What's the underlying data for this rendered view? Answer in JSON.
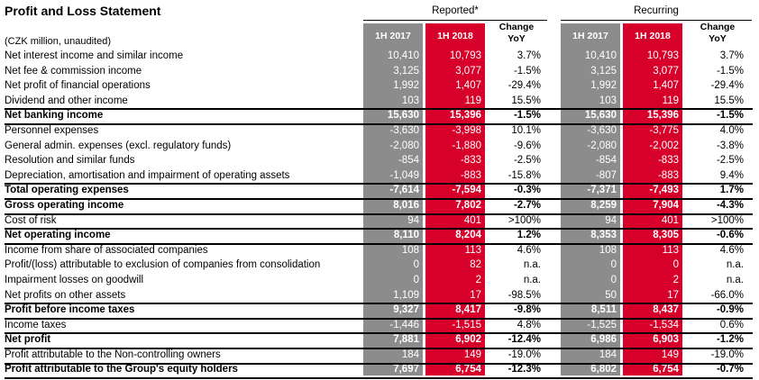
{
  "title": "Profit and Loss Statement",
  "subtitle": "(CZK million, unaudited)",
  "groups": {
    "reported": "Reported*",
    "recurring": "Recurring"
  },
  "headers": {
    "h2017": "1H 2017",
    "h2018": "1H 2018",
    "change": "Change",
    "yoy": "YoY"
  },
  "colors": {
    "grey": "#8c8c8c",
    "red": "#d6002a"
  },
  "rows": [
    {
      "label": "Net interest income and similar income",
      "bold": false,
      "rep2017": "10,410",
      "rep2018": "10,793",
      "repChg": "3.7%",
      "rec2017": "10,410",
      "rec2018": "10,793",
      "recChg": "3.7%"
    },
    {
      "label": "Net fee & commission income",
      "bold": false,
      "rep2017": "3,125",
      "rep2018": "3,077",
      "repChg": "-1.5%",
      "rec2017": "3,125",
      "rec2018": "3,077",
      "recChg": "-1.5%"
    },
    {
      "label": "Net profit of financial operations",
      "bold": false,
      "rep2017": "1,992",
      "rep2018": "1,407",
      "repChg": "-29.4%",
      "rec2017": "1,992",
      "rec2018": "1,407",
      "recChg": "-29.4%"
    },
    {
      "label": "Dividend and other income",
      "bold": false,
      "rep2017": "103",
      "rep2018": "119",
      "repChg": "15.5%",
      "rec2017": "103",
      "rec2018": "119",
      "recChg": "15.5%"
    },
    {
      "label": "Net banking income",
      "bold": true,
      "rep2017": "15,630",
      "rep2018": "15,396",
      "repChg": "-1.5%",
      "rec2017": "15,630",
      "rec2018": "15,396",
      "recChg": "-1.5%"
    },
    {
      "label": "Personnel expenses",
      "bold": false,
      "rep2017": "-3,630",
      "rep2018": "-3,998",
      "repChg": "10.1%",
      "rec2017": "-3,630",
      "rec2018": "-3,775",
      "recChg": "4.0%"
    },
    {
      "label": "General admin. expenses (excl. regulatory funds)",
      "bold": false,
      "rep2017": "-2,080",
      "rep2018": "-1,880",
      "repChg": "-9.6%",
      "rec2017": "-2,080",
      "rec2018": "-2,002",
      "recChg": "-3.8%"
    },
    {
      "label": "Resolution and similar funds",
      "bold": false,
      "rep2017": "-854",
      "rep2018": "-833",
      "repChg": "-2.5%",
      "rec2017": "-854",
      "rec2018": "-833",
      "recChg": "-2.5%"
    },
    {
      "label": "Depreciation, amortisation and impairment of operating assets",
      "bold": false,
      "rep2017": "-1,049",
      "rep2018": "-883",
      "repChg": "-15.8%",
      "rec2017": "-807",
      "rec2018": "-883",
      "recChg": "9.4%"
    },
    {
      "label": "Total operating expenses",
      "bold": true,
      "rep2017": "-7,614",
      "rep2018": "-7,594",
      "repChg": "-0.3%",
      "rec2017": "-7,371",
      "rec2018": "-7,493",
      "recChg": "1.7%"
    },
    {
      "label": "Gross operating income",
      "bold": true,
      "rep2017": "8,016",
      "rep2018": "7,802",
      "repChg": "-2.7%",
      "rec2017": "8,259",
      "rec2018": "7,904",
      "recChg": "-4.3%"
    },
    {
      "label": "Cost of risk",
      "bold": false,
      "rep2017": "94",
      "rep2018": "401",
      "repChg": ">100%",
      "rec2017": "94",
      "rec2018": "401",
      "recChg": ">100%"
    },
    {
      "label": "Net operating income",
      "bold": true,
      "rep2017": "8,110",
      "rep2018": "8,204",
      "repChg": "1.2%",
      "rec2017": "8,353",
      "rec2018": "8,305",
      "recChg": "-0.6%"
    },
    {
      "label": "Income from share of associated companies",
      "bold": false,
      "rep2017": "108",
      "rep2018": "113",
      "repChg": "4.6%",
      "rec2017": "108",
      "rec2018": "113",
      "recChg": "4.6%"
    },
    {
      "label": "Profit/(loss) attributable to exclusion of companies from consolidation",
      "bold": false,
      "rep2017": "0",
      "rep2018": "82",
      "repChg": "n.a.",
      "rec2017": "0",
      "rec2018": "0",
      "recChg": "n.a."
    },
    {
      "label": "Impairment losses on goodwill",
      "bold": false,
      "rep2017": "0",
      "rep2018": "2",
      "repChg": "n.a.",
      "rec2017": "0",
      "rec2018": "2",
      "recChg": "n.a."
    },
    {
      "label": "Net profits on other assets",
      "bold": false,
      "rep2017": "1,109",
      "rep2018": "17",
      "repChg": "-98.5%",
      "rec2017": "50",
      "rec2018": "17",
      "recChg": "-66.0%"
    },
    {
      "label": "Profit before income taxes",
      "bold": true,
      "rep2017": "9,327",
      "rep2018": "8,417",
      "repChg": "-9.8%",
      "rec2017": "8,511",
      "rec2018": "8,437",
      "recChg": "-0.9%"
    },
    {
      "label": "Income taxes",
      "bold": false,
      "rep2017": "-1,446",
      "rep2018": "-1,515",
      "repChg": "4.8%",
      "rec2017": "-1,525",
      "rec2018": "-1,534",
      "recChg": "0.6%"
    },
    {
      "label": "Net profit",
      "bold": true,
      "rep2017": "7,881",
      "rep2018": "6,902",
      "repChg": "-12.4%",
      "rec2017": "6,986",
      "rec2018": "6,903",
      "recChg": "-1.2%"
    },
    {
      "label": "Profit attributable to the Non-controlling owners",
      "bold": false,
      "rep2017": "184",
      "rep2018": "149",
      "repChg": "-19.0%",
      "rec2017": "184",
      "rec2018": "149",
      "recChg": "-19.0%"
    },
    {
      "label": "Profit attributable to the Group's equity holders",
      "bold": true,
      "rep2017": "7,697",
      "rep2018": "6,754",
      "repChg": "-12.3%",
      "rec2017": "6,802",
      "rec2018": "6,754",
      "recChg": "-0.7%"
    }
  ]
}
